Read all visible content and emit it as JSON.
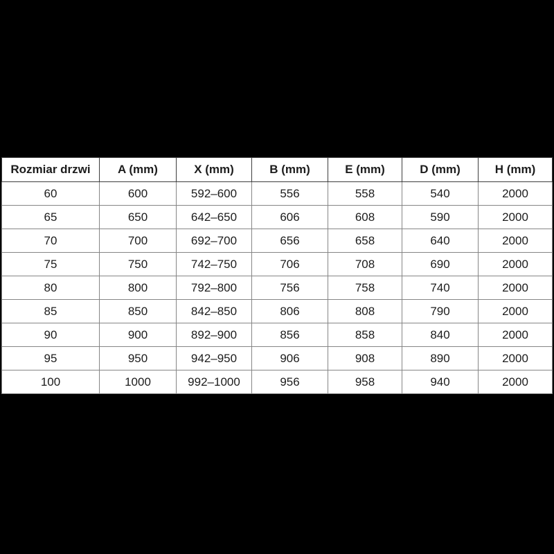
{
  "colors": {
    "page_background": "#000000",
    "cell_background": "#ffffff",
    "header_border": "#3c3c3c",
    "grid_line": "#858585",
    "text": "#1c1c1c"
  },
  "table": {
    "headers": [
      "Rozmiar drzwi",
      "A (mm)",
      "X (mm)",
      "B (mm)",
      "E (mm)",
      "D (mm)",
      "H (mm)"
    ],
    "rows": [
      [
        "60",
        "600",
        "592–600",
        "556",
        "558",
        "540",
        "2000"
      ],
      [
        "65",
        "650",
        "642–650",
        "606",
        "608",
        "590",
        "2000"
      ],
      [
        "70",
        "700",
        "692–700",
        "656",
        "658",
        "640",
        "2000"
      ],
      [
        "75",
        "750",
        "742–750",
        "706",
        "708",
        "690",
        "2000"
      ],
      [
        "80",
        "800",
        "792–800",
        "756",
        "758",
        "740",
        "2000"
      ],
      [
        "85",
        "850",
        "842–850",
        "806",
        "808",
        "790",
        "2000"
      ],
      [
        "90",
        "900",
        "892–900",
        "856",
        "858",
        "840",
        "2000"
      ],
      [
        "95",
        "950",
        "942–950",
        "906",
        "908",
        "890",
        "2000"
      ],
      [
        "100",
        "1000",
        "992–1000",
        "956",
        "958",
        "940",
        "2000"
      ]
    ]
  }
}
